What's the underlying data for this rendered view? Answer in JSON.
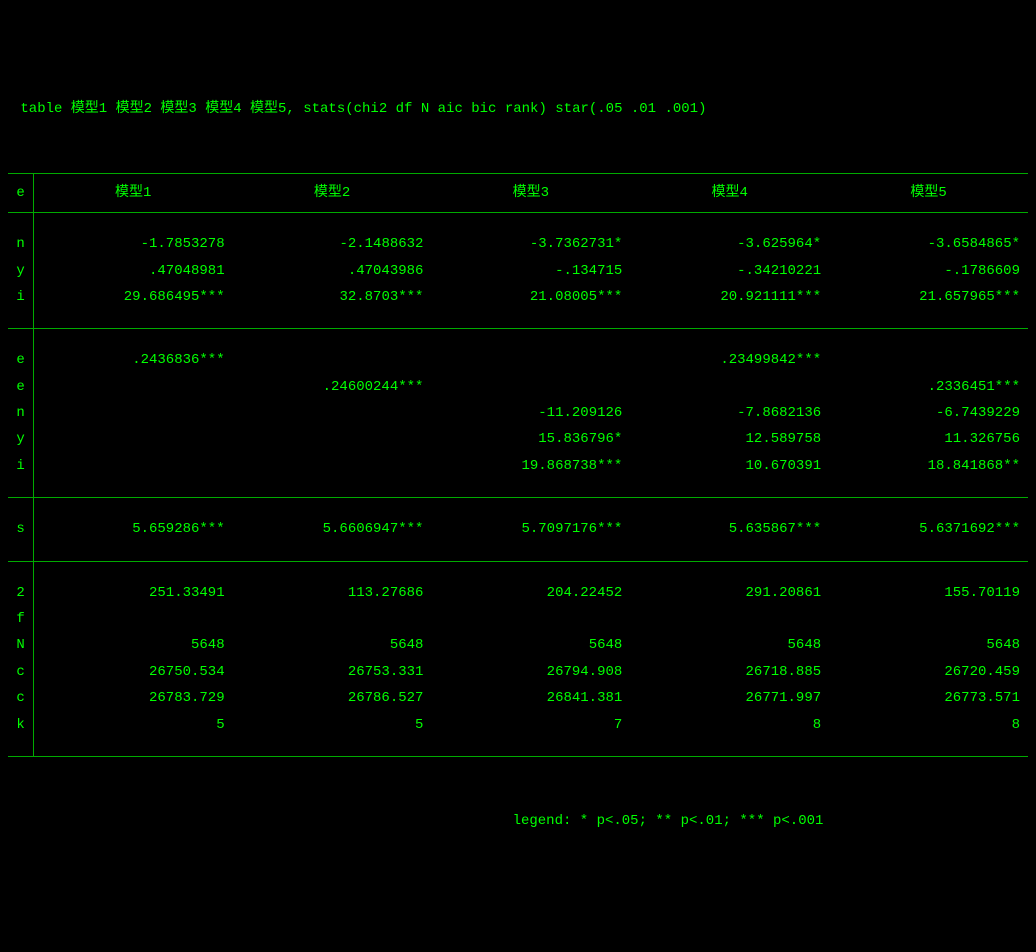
{
  "colors": {
    "background": "#000000",
    "text": "#00ff00",
    "border": "#00aa00"
  },
  "command": " table 模型1 模型2 模型3 模型4 模型5, stats(chi2 df N aic bic rank) star(.05 .01 .001)",
  "table": {
    "row_label_header": "e",
    "columns": [
      "模型1",
      "模型2",
      "模型3",
      "模型4",
      "模型5"
    ],
    "sections": [
      {
        "rows": [
          {
            "label": "n",
            "cells": [
              "-1.7853278",
              "-2.1488632",
              "-3.7362731*",
              "-3.625964*",
              "-3.6584865*"
            ]
          },
          {
            "label": "y",
            "cells": [
              ".47048981",
              ".47043986",
              "-.134715",
              "-.34210221",
              "-.1786609"
            ]
          },
          {
            "label": "i",
            "cells": [
              "29.686495***",
              "32.8703***",
              "21.08005***",
              "20.921111***",
              "21.657965***"
            ]
          }
        ]
      },
      {
        "rows": [
          {
            "label": "e",
            "cells": [
              ".2436836***",
              "",
              "",
              ".23499842***",
              ""
            ]
          },
          {
            "label": "e",
            "cells": [
              "",
              ".24600244***",
              "",
              "",
              ".2336451***"
            ]
          },
          {
            "label": "n",
            "cells": [
              "",
              "",
              "-11.209126",
              "-7.8682136",
              "-6.7439229"
            ]
          },
          {
            "label": "y",
            "cells": [
              "",
              "",
              "15.836796*",
              "12.589758",
              "11.326756"
            ]
          },
          {
            "label": "i",
            "cells": [
              "",
              "",
              "19.868738***",
              "10.670391",
              "18.841868**"
            ]
          }
        ]
      },
      {
        "rows": [
          {
            "label": "s",
            "cells": [
              "5.659286***",
              "5.6606947***",
              "5.7097176***",
              "5.635867***",
              "5.6371692***"
            ]
          }
        ]
      },
      {
        "rows": [
          {
            "label": "2",
            "cells": [
              "251.33491",
              "113.27686",
              "204.22452",
              "291.20861",
              "155.70119"
            ]
          },
          {
            "label": "f",
            "cells": [
              "",
              "",
              "",
              "",
              ""
            ]
          },
          {
            "label": "N",
            "cells": [
              "5648",
              "5648",
              "5648",
              "5648",
              "5648"
            ]
          },
          {
            "label": "c",
            "cells": [
              "26750.534",
              "26753.331",
              "26794.908",
              "26718.885",
              "26720.459"
            ]
          },
          {
            "label": "c",
            "cells": [
              "26783.729",
              "26786.527",
              "26841.381",
              "26771.997",
              "26773.571"
            ]
          },
          {
            "label": "k",
            "cells": [
              "5",
              "5",
              "7",
              "8",
              "8"
            ]
          }
        ]
      }
    ]
  },
  "legend": "legend: * p<.05; ** p<.01; *** p<.001"
}
